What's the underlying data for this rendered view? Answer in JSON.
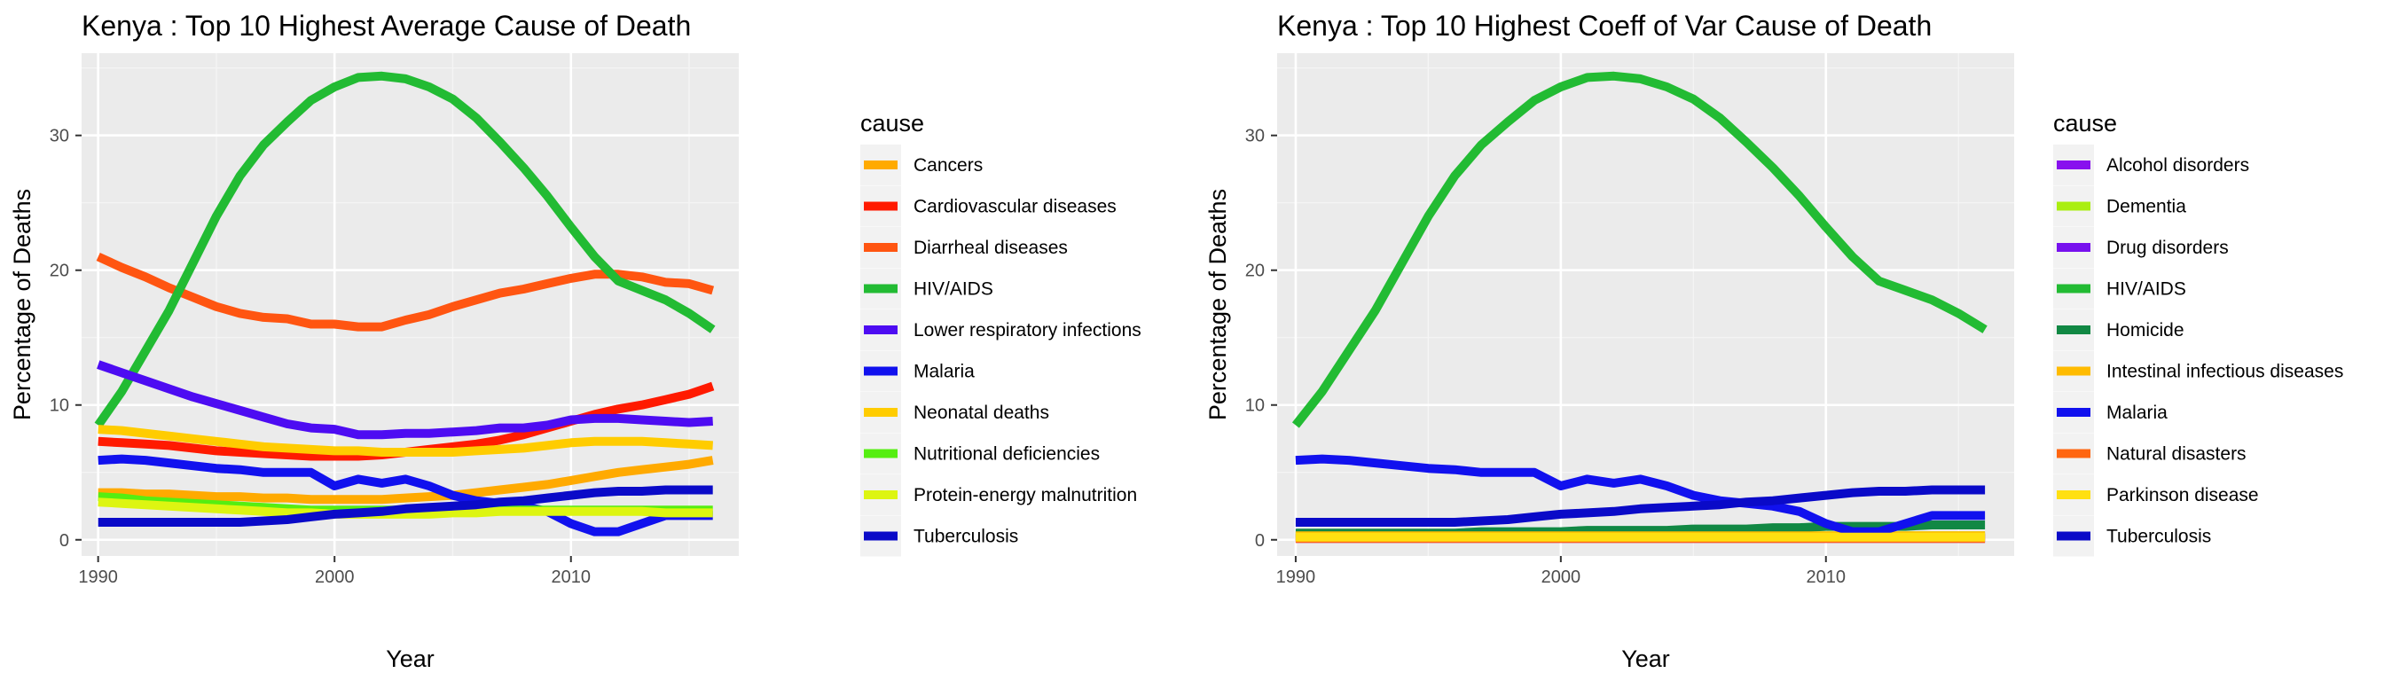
{
  "chart_data": [
    {
      "type": "line",
      "title": "Kenya : Top  10  Highest Average Cause of Death",
      "xlabel": "Year",
      "ylabel": "Percentage of Deaths",
      "xlim": [
        1989.3,
        2017.1
      ],
      "ylim": [
        -1.2,
        36.1
      ],
      "xticks": [
        1990,
        2000,
        2010
      ],
      "xminor": [
        1995,
        2005,
        2015
      ],
      "yticks": [
        0,
        10,
        20,
        30
      ],
      "yminor": [
        5,
        15,
        25,
        35
      ],
      "grid": true,
      "legend_title": "cause",
      "legend_position": "right",
      "x": [
        1990,
        1991,
        1992,
        1993,
        1994,
        1995,
        1996,
        1997,
        1998,
        1999,
        2000,
        2001,
        2002,
        2003,
        2004,
        2005,
        2006,
        2007,
        2008,
        2009,
        2010,
        2011,
        2012,
        2013,
        2014,
        2015,
        2016
      ],
      "series": [
        {
          "name": "Cancers",
          "color": "#FFAA00",
          "values": [
            3.5,
            3.5,
            3.4,
            3.4,
            3.3,
            3.2,
            3.2,
            3.1,
            3.1,
            3.0,
            3.0,
            3.0,
            3.0,
            3.1,
            3.2,
            3.3,
            3.5,
            3.7,
            3.9,
            4.1,
            4.4,
            4.7,
            5.0,
            5.2,
            5.4,
            5.6,
            5.9
          ]
        },
        {
          "name": "Cardiovascular diseases",
          "color": "#FF1A00",
          "values": [
            7.3,
            7.2,
            7.1,
            7.0,
            6.8,
            6.6,
            6.5,
            6.4,
            6.3,
            6.2,
            6.2,
            6.2,
            6.3,
            6.5,
            6.7,
            6.9,
            7.1,
            7.4,
            7.8,
            8.3,
            8.8,
            9.3,
            9.7,
            10.0,
            10.4,
            10.8,
            11.4
          ]
        },
        {
          "name": "Diarrheal diseases",
          "color": "#FF5511",
          "values": [
            21.0,
            20.2,
            19.5,
            18.7,
            18.0,
            17.3,
            16.8,
            16.5,
            16.4,
            16.0,
            16.0,
            15.8,
            15.8,
            16.3,
            16.7,
            17.3,
            17.8,
            18.3,
            18.6,
            19.0,
            19.4,
            19.7,
            19.7,
            19.5,
            19.1,
            19.0,
            18.5
          ]
        },
        {
          "name": "HIV/AIDS",
          "color": "#22BB33",
          "values": [
            8.5,
            11.0,
            14.0,
            17.0,
            20.5,
            24.0,
            27.0,
            29.3,
            31.0,
            32.6,
            33.6,
            34.3,
            34.4,
            34.2,
            33.6,
            32.7,
            31.3,
            29.5,
            27.6,
            25.5,
            23.2,
            21.0,
            19.2,
            18.5,
            17.8,
            16.8,
            15.6
          ]
        },
        {
          "name": "Lower respiratory infections",
          "color": "#4D0CF2",
          "values": [
            13.0,
            12.4,
            11.8,
            11.2,
            10.6,
            10.1,
            9.6,
            9.1,
            8.6,
            8.3,
            8.2,
            7.8,
            7.8,
            7.9,
            7.9,
            8.0,
            8.1,
            8.3,
            8.3,
            8.5,
            8.9,
            9.0,
            9.0,
            8.9,
            8.8,
            8.7,
            8.8
          ]
        },
        {
          "name": "Malaria",
          "color": "#1111EE",
          "values": [
            5.9,
            6.0,
            5.9,
            5.7,
            5.5,
            5.3,
            5.2,
            5.0,
            5.0,
            5.0,
            4.0,
            4.5,
            4.2,
            4.5,
            4.0,
            3.3,
            2.9,
            2.7,
            2.5,
            2.1,
            1.2,
            0.6,
            0.6,
            1.2,
            1.8,
            1.8,
            1.8
          ]
        },
        {
          "name": "Neonatal deaths",
          "color": "#FFCC00",
          "values": [
            8.2,
            8.1,
            7.9,
            7.7,
            7.5,
            7.3,
            7.1,
            6.9,
            6.8,
            6.7,
            6.6,
            6.6,
            6.5,
            6.5,
            6.5,
            6.5,
            6.6,
            6.7,
            6.8,
            7.0,
            7.2,
            7.3,
            7.3,
            7.3,
            7.2,
            7.1,
            7.0
          ]
        },
        {
          "name": "Nutritional deficiencies",
          "color": "#55EE11",
          "values": [
            3.2,
            3.1,
            2.9,
            2.8,
            2.7,
            2.6,
            2.5,
            2.4,
            2.3,
            2.2,
            2.2,
            2.2,
            2.2,
            2.2,
            2.2,
            2.2,
            2.2,
            2.2,
            2.2,
            2.2,
            2.2,
            2.2,
            2.2,
            2.2,
            2.2,
            2.2,
            2.2
          ]
        },
        {
          "name": "Protein-energy malnutrition",
          "color": "#DDF511",
          "values": [
            2.8,
            2.7,
            2.6,
            2.5,
            2.4,
            2.3,
            2.2,
            2.1,
            2.0,
            2.0,
            1.9,
            1.9,
            1.9,
            1.9,
            1.9,
            2.0,
            2.0,
            2.1,
            2.1,
            2.1,
            2.1,
            2.1,
            2.1,
            2.1,
            2.0,
            2.0,
            2.0
          ]
        },
        {
          "name": "Tuberculosis",
          "color": "#0A0AC8",
          "values": [
            1.3,
            1.3,
            1.3,
            1.3,
            1.3,
            1.3,
            1.3,
            1.4,
            1.5,
            1.7,
            1.9,
            2.0,
            2.1,
            2.3,
            2.4,
            2.5,
            2.6,
            2.8,
            2.9,
            3.1,
            3.3,
            3.5,
            3.6,
            3.6,
            3.7,
            3.7,
            3.7
          ]
        }
      ]
    },
    {
      "type": "line",
      "title": "Kenya : Top  10  Highest Coeff of Var Cause of Death",
      "xlabel": "Year",
      "ylabel": "Percentage of Deaths",
      "xlim": [
        1989.3,
        2017.1
      ],
      "ylim": [
        -1.2,
        36.1
      ],
      "xticks": [
        1990,
        2000,
        2010
      ],
      "xminor": [
        1995,
        2005,
        2015
      ],
      "yticks": [
        0,
        10,
        20,
        30
      ],
      "yminor": [
        5,
        15,
        25,
        35
      ],
      "grid": true,
      "legend_title": "cause",
      "legend_position": "right",
      "x": [
        1990,
        1991,
        1992,
        1993,
        1994,
        1995,
        1996,
        1997,
        1998,
        1999,
        2000,
        2001,
        2002,
        2003,
        2004,
        2005,
        2006,
        2007,
        2008,
        2009,
        2010,
        2011,
        2012,
        2013,
        2014,
        2015,
        2016
      ],
      "series": [
        {
          "name": "Alcohol disorders",
          "color": "#8811EE",
          "values": [
            0.2,
            0.2,
            0.2,
            0.2,
            0.2,
            0.2,
            0.2,
            0.2,
            0.2,
            0.2,
            0.2,
            0.2,
            0.2,
            0.2,
            0.2,
            0.2,
            0.2,
            0.2,
            0.2,
            0.2,
            0.2,
            0.2,
            0.2,
            0.2,
            0.2,
            0.2,
            0.2
          ]
        },
        {
          "name": "Dementia",
          "color": "#AAEE11",
          "values": [
            0.3,
            0.3,
            0.3,
            0.3,
            0.3,
            0.3,
            0.3,
            0.3,
            0.3,
            0.3,
            0.3,
            0.3,
            0.3,
            0.3,
            0.3,
            0.3,
            0.3,
            0.3,
            0.3,
            0.3,
            0.3,
            0.3,
            0.3,
            0.3,
            0.3,
            0.3,
            0.3
          ]
        },
        {
          "name": "Drug disorders",
          "color": "#7711EE",
          "values": [
            0.1,
            0.1,
            0.1,
            0.1,
            0.1,
            0.1,
            0.1,
            0.1,
            0.1,
            0.1,
            0.1,
            0.1,
            0.1,
            0.1,
            0.1,
            0.1,
            0.1,
            0.1,
            0.1,
            0.1,
            0.1,
            0.1,
            0.1,
            0.1,
            0.1,
            0.1,
            0.1
          ]
        },
        {
          "name": "HIV/AIDS",
          "color": "#22BB33",
          "values": [
            8.5,
            11.0,
            14.0,
            17.0,
            20.5,
            24.0,
            27.0,
            29.3,
            31.0,
            32.6,
            33.6,
            34.3,
            34.4,
            34.2,
            33.6,
            32.7,
            31.3,
            29.5,
            27.6,
            25.5,
            23.2,
            21.0,
            19.2,
            18.5,
            17.8,
            16.8,
            15.6
          ]
        },
        {
          "name": "Homicide",
          "color": "#118844",
          "values": [
            0.5,
            0.5,
            0.5,
            0.5,
            0.5,
            0.5,
            0.5,
            0.6,
            0.6,
            0.6,
            0.6,
            0.7,
            0.7,
            0.7,
            0.7,
            0.8,
            0.8,
            0.8,
            0.9,
            0.9,
            1.0,
            1.0,
            1.0,
            1.0,
            1.1,
            1.1,
            1.1
          ]
        },
        {
          "name": "Intestinal infectious diseases",
          "color": "#FFBB00",
          "values": [
            0.3,
            0.3,
            0.3,
            0.3,
            0.3,
            0.3,
            0.3,
            0.3,
            0.3,
            0.3,
            0.3,
            0.3,
            0.3,
            0.3,
            0.3,
            0.3,
            0.3,
            0.3,
            0.3,
            0.3,
            0.3,
            0.3,
            0.3,
            0.3,
            0.3,
            0.3,
            0.3
          ]
        },
        {
          "name": "Malaria",
          "color": "#1111EE",
          "values": [
            5.9,
            6.0,
            5.9,
            5.7,
            5.5,
            5.3,
            5.2,
            5.0,
            5.0,
            5.0,
            4.0,
            4.5,
            4.2,
            4.5,
            4.0,
            3.3,
            2.9,
            2.7,
            2.5,
            2.1,
            1.2,
            0.6,
            0.6,
            1.2,
            1.8,
            1.8,
            1.8
          ]
        },
        {
          "name": "Natural disasters",
          "color": "#FF6611",
          "values": [
            0.1,
            0.1,
            0.1,
            0.1,
            0.1,
            0.1,
            0.1,
            0.1,
            0.1,
            0.1,
            0.1,
            0.1,
            0.1,
            0.1,
            0.1,
            0.1,
            0.1,
            0.1,
            0.1,
            0.1,
            0.1,
            0.1,
            0.1,
            0.1,
            0.1,
            0.1,
            0.1
          ]
        },
        {
          "name": "Parkinson disease",
          "color": "#FFE011",
          "values": [
            0.2,
            0.2,
            0.2,
            0.2,
            0.2,
            0.2,
            0.2,
            0.2,
            0.2,
            0.2,
            0.2,
            0.2,
            0.2,
            0.2,
            0.2,
            0.2,
            0.2,
            0.2,
            0.2,
            0.2,
            0.2,
            0.2,
            0.2,
            0.2,
            0.2,
            0.2,
            0.2
          ]
        },
        {
          "name": "Tuberculosis",
          "color": "#0A0AC8",
          "values": [
            1.3,
            1.3,
            1.3,
            1.3,
            1.3,
            1.3,
            1.3,
            1.4,
            1.5,
            1.7,
            1.9,
            2.0,
            2.1,
            2.3,
            2.4,
            2.5,
            2.6,
            2.8,
            2.9,
            3.1,
            3.3,
            3.5,
            3.6,
            3.6,
            3.7,
            3.7,
            3.7
          ]
        }
      ]
    }
  ]
}
